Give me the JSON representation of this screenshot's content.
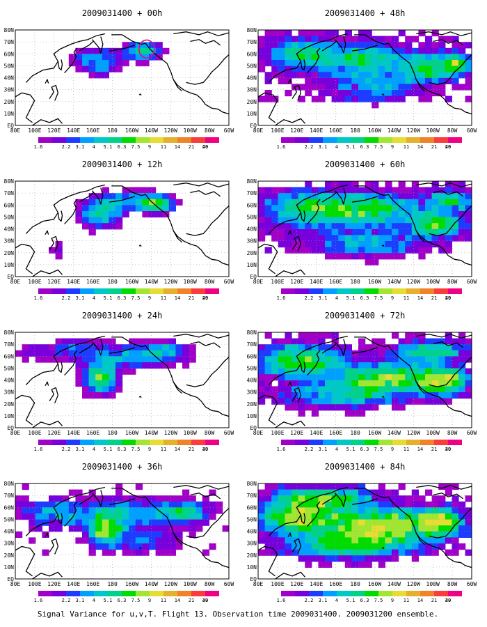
{
  "figure": {
    "caption": "Signal Variance for u,v,T. Flight 13. Observation time 2009031400. 2009031200 ensemble."
  },
  "axes": {
    "x_ticks": [
      "80E",
      "100E",
      "120E",
      "140E",
      "160E",
      "180",
      "160W",
      "140W",
      "120W",
      "100W",
      "80W",
      "60W"
    ],
    "y_ticks": [
      "80N",
      "70N",
      "60N",
      "50N",
      "40N",
      "30N",
      "20N",
      "10N",
      "EQ"
    ]
  },
  "legend": {
    "levels": [
      "1.6",
      "2.2",
      "3.1",
      "4",
      "5.1",
      "6.3",
      "7.5",
      "9",
      "11",
      "14",
      "21",
      "29",
      "40"
    ],
    "colors": [
      "#a000c8",
      "#7800dc",
      "#1e3cff",
      "#00a0ff",
      "#00c8c8",
      "#00d28c",
      "#00dc00",
      "#a0e632",
      "#e6dc32",
      "#e6af2d",
      "#f08228",
      "#fa3c3c",
      "#f00082"
    ]
  },
  "colors": {
    "coastline": "#000000",
    "grid": "#9a9a9a",
    "contour": "#f00082",
    "background": "#ffffff"
  },
  "panels": [
    {
      "id": "p00",
      "title": "2009031400 + 00h",
      "lead_hours": 0,
      "col": 0,
      "row": 0
    },
    {
      "id": "p48",
      "title": "2009031400 + 48h",
      "lead_hours": 48,
      "col": 1,
      "row": 0
    },
    {
      "id": "p12",
      "title": "2009031400 + 12h",
      "lead_hours": 12,
      "col": 0,
      "row": 1
    },
    {
      "id": "p60",
      "title": "2009031400 + 60h",
      "lead_hours": 60,
      "col": 1,
      "row": 1
    },
    {
      "id": "p24",
      "title": "2009031400 + 24h",
      "lead_hours": 24,
      "col": 0,
      "row": 2
    },
    {
      "id": "p72",
      "title": "2009031400 + 72h",
      "lead_hours": 72,
      "col": 1,
      "row": 2
    },
    {
      "id": "p36",
      "title": "2009031400 + 36h",
      "lead_hours": 36,
      "col": 0,
      "row": 3
    },
    {
      "id": "p84",
      "title": "2009031400 + 84h",
      "lead_hours": 84,
      "col": 1,
      "row": 3
    }
  ]
}
